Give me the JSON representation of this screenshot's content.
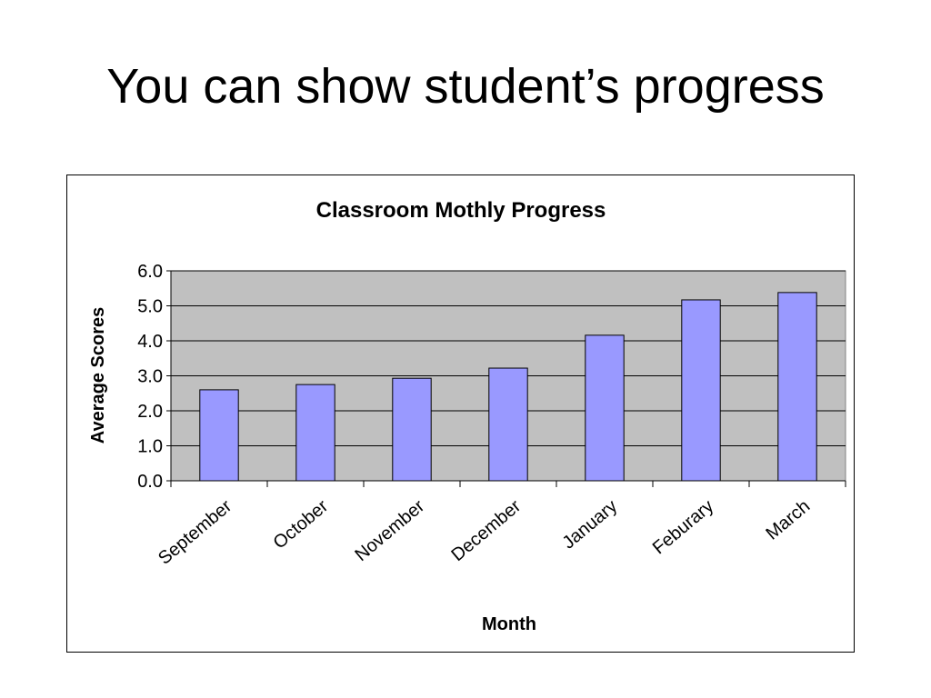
{
  "slide": {
    "title": "You can show student’s progress"
  },
  "chart_data": {
    "type": "bar",
    "title": "Classroom Mothly Progress",
    "xlabel": "Month",
    "ylabel": "Average Scores",
    "categories": [
      "September",
      "October",
      "November",
      "December",
      "January",
      "Feburary",
      "March"
    ],
    "values": [
      2.6,
      2.75,
      2.93,
      3.22,
      4.16,
      5.17,
      5.38
    ],
    "ylim": [
      0,
      6
    ],
    "yticks": [
      "0.0",
      "1.0",
      "2.0",
      "3.0",
      "4.0",
      "5.0",
      "6.0"
    ],
    "grid": true,
    "legend": "none",
    "colors": {
      "bar_fill": "#9999ff",
      "bar_stroke": "#000000",
      "plot_background": "#c0c0c0",
      "gridline": "#000000"
    }
  }
}
